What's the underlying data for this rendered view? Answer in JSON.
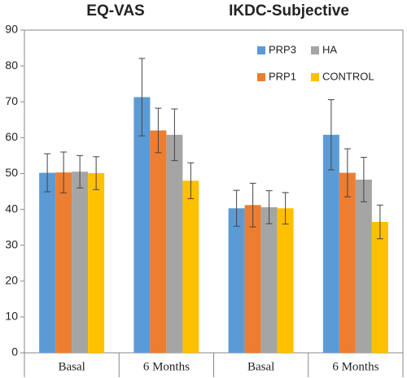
{
  "chart_data": {
    "type": "bar",
    "titles": [
      "EQ-VAS",
      "IKDC-Subjective"
    ],
    "categories": [
      "Basal",
      "6 Months",
      "Basal",
      "6 Months"
    ],
    "series": [
      {
        "name": "PRP3",
        "color": "#5b9bd5",
        "values": [
          50.2,
          71.3,
          40.3,
          60.8
        ],
        "errors": [
          5.3,
          10.8,
          5,
          9.8
        ]
      },
      {
        "name": "PRP1",
        "color": "#ed7d31",
        "values": [
          50.3,
          62,
          41.2,
          50.2
        ],
        "errors": [
          5.7,
          6.2,
          6.1,
          6.7
        ]
      },
      {
        "name": "HA",
        "color": "#a5a5a5",
        "values": [
          50.5,
          60.8,
          40.6,
          48.3
        ],
        "errors": [
          4.5,
          7.2,
          4.6,
          6.2
        ]
      },
      {
        "name": "CONTROL",
        "color": "#ffc000",
        "values": [
          50.1,
          48,
          40.3,
          36.5
        ],
        "errors": [
          4.6,
          5,
          4.4,
          4.7
        ]
      }
    ],
    "ylim": [
      0,
      90
    ],
    "yticks": [
      0,
      10,
      20,
      30,
      40,
      50,
      60,
      70,
      80,
      90
    ],
    "grid": false,
    "legend": "upper right"
  }
}
